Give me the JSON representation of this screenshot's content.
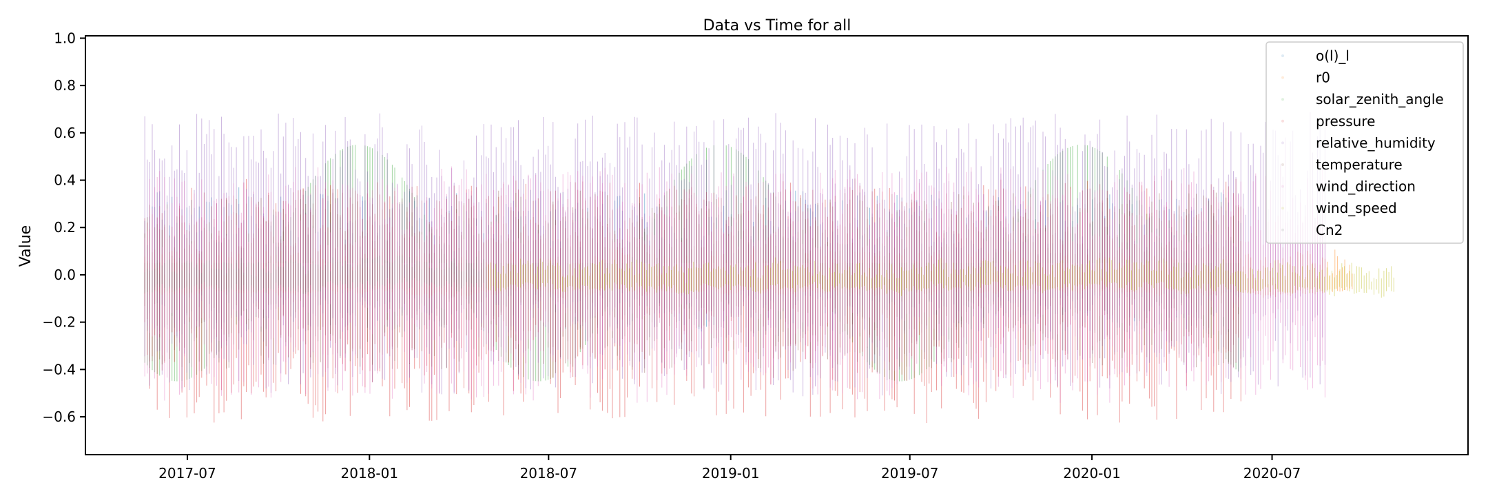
{
  "chart_data": {
    "type": "scatter",
    "title": "Data vs Time for all",
    "xlabel": "",
    "ylabel": "Value",
    "x_range": [
      "2017-03-20",
      "2021-01-15"
    ],
    "ylim": [
      -0.76,
      1.01
    ],
    "x_ticks": [
      "2017-07-01",
      "2018-01-01",
      "2018-07-01",
      "2019-01-01",
      "2019-07-01",
      "2020-01-01",
      "2020-07-01"
    ],
    "x_tick_labels": [
      "2017-07",
      "2018-01",
      "2018-07",
      "2019-01",
      "2019-07",
      "2020-01",
      "2020-07"
    ],
    "y_ticks": [
      -0.6,
      -0.4,
      -0.2,
      0.0,
      0.2,
      0.4,
      0.6,
      0.8,
      1.0
    ],
    "y_tick_labels": [
      "−0.6",
      "−0.4",
      "−0.2",
      "0.0",
      "0.2",
      "0.4",
      "0.6",
      "0.8",
      "1.0"
    ],
    "grid": false,
    "legend_position": "top-right",
    "series": [
      {
        "name": "o(l)_l",
        "color": "#1f77b4",
        "start": "2017-05-19",
        "end": "2020-06-01",
        "center": 0.02,
        "noise_low": -0.25,
        "noise_high": 0.35
      },
      {
        "name": "r0",
        "color": "#ff7f0e",
        "start": "2017-05-19",
        "end": "2020-09-20",
        "center": -0.06,
        "noise_low": -0.08,
        "noise_high": 0.1
      },
      {
        "name": "solar_zenith_angle",
        "color": "#2ca02c",
        "start": "2017-05-19",
        "end": "2020-06-01",
        "center": 0.05,
        "amplitude": 0.5,
        "min_value": -0.45,
        "max_value": 0.55,
        "minimum_date": "2017-06-21",
        "maximum_date": "2018-12-21"
      },
      {
        "name": "pressure",
        "color": "#d62728",
        "start": "2017-05-19",
        "end": "2020-06-01",
        "center": 0.0,
        "noise_low": -0.62,
        "noise_high": 0.4
      },
      {
        "name": "relative_humidity",
        "color": "#9467bd",
        "start": "2017-05-19",
        "end": "2020-08-25",
        "center": 0.05,
        "noise_low": -0.5,
        "noise_high": 0.68
      },
      {
        "name": "temperature",
        "color": "#8c564b",
        "start": "2017-05-19",
        "end": "2020-06-01",
        "center": 0.0,
        "noise_low": -0.4,
        "noise_high": 0.35
      },
      {
        "name": "wind_direction",
        "color": "#e377c2",
        "start": "2017-05-19",
        "end": "2020-08-25",
        "center": 0.0,
        "noise_low": -0.53,
        "noise_high": 0.45
      },
      {
        "name": "wind_speed",
        "color": "#bcbd22",
        "start": "2018-05-01",
        "end": "2020-11-01",
        "center": -0.03,
        "noise_low": -0.07,
        "noise_high": 0.06
      },
      {
        "name": "Cn2",
        "color": "#7f7f7f",
        "start": "2017-05-19",
        "end": "2018-05-01",
        "center": -0.02,
        "noise_low": -0.07,
        "noise_high": 0.07
      }
    ]
  }
}
